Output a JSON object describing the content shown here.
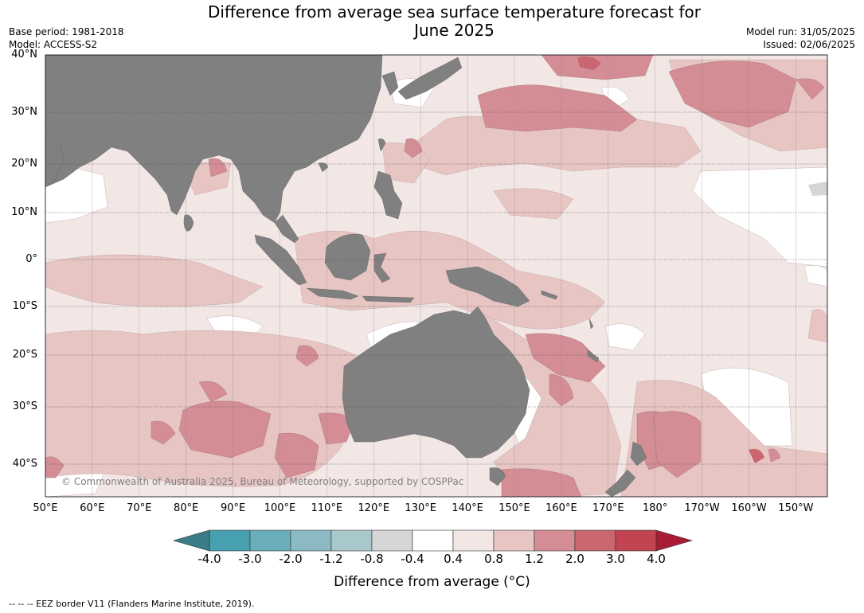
{
  "title": {
    "line1": "Difference from average sea surface temperature forecast for",
    "line2": "June 2025"
  },
  "meta": {
    "base_period": "Base period: 1981-2018",
    "model": "Model: ACCESS-S2",
    "model_run": "Model run: 31/05/2025",
    "issued": "Issued: 02/06/2025"
  },
  "map": {
    "land_color": "#808080",
    "copyright": "© Commonwealth of Australia 2025, Bureau of Meteorology, supported by COSPPac",
    "lat_labels": [
      "40°N",
      "30°N",
      "20°N",
      "10°N",
      "0°",
      "10°S",
      "20°S",
      "30°S",
      "40°S"
    ],
    "lon_labels": [
      "50°E",
      "60°E",
      "70°E",
      "80°E",
      "90°E",
      "100°E",
      "110°E",
      "120°E",
      "130°E",
      "140°E",
      "150°E",
      "160°E",
      "170°E",
      "180°",
      "170°W",
      "160°W",
      "150°W"
    ]
  },
  "colorbar": {
    "title": "Difference from average (°C)",
    "ticks": [
      "-4.0",
      "-3.0",
      "-2.0",
      "-1.2",
      "-0.8",
      "-0.4",
      "0.4",
      "0.8",
      "1.2",
      "2.0",
      "3.0",
      "4.0"
    ],
    "colors": {
      "under": "#3a7d86",
      "bins": [
        "#46a0b0",
        "#6aaeba",
        "#8cbac4",
        "#a9c8cc",
        "#d6d6d6",
        "#ffffff",
        "#f3e7e6",
        "#e7c5c3",
        "#d48d95",
        "#c96670",
        "#c24452"
      ],
      "over": "#a91b35"
    }
  },
  "eez_note": "--  --  -- EEZ border V11 (Flanders Marine Institute, 2019)."
}
